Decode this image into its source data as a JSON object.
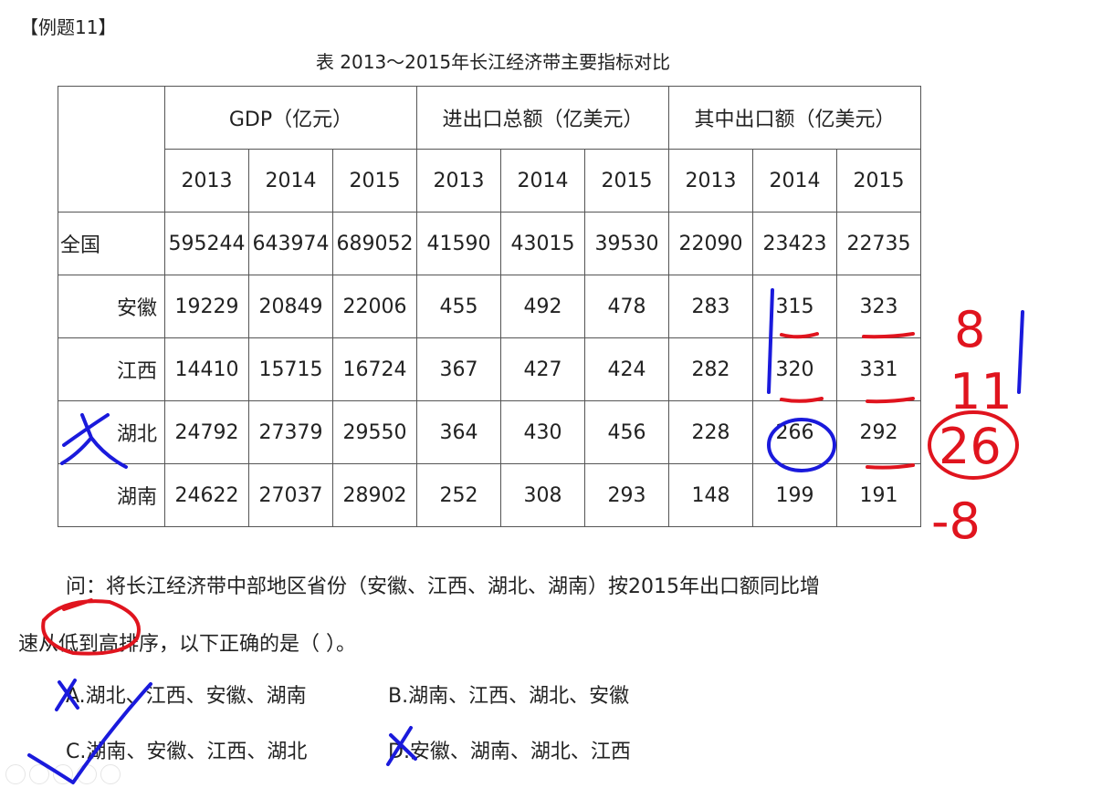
{
  "example_label": "【例题11】",
  "caption": "表  2013～2015年长江经济带主要指标对比",
  "table": {
    "group_headers": [
      "GDP（亿元）",
      "进出口总额（亿美元）",
      "其中出口额（亿美元）"
    ],
    "years": [
      "2013",
      "2014",
      "2015",
      "2013",
      "2014",
      "2015",
      "2013",
      "2014",
      "2015"
    ],
    "rows": [
      {
        "name": "全国",
        "values": [
          "595244",
          "643974",
          "689052",
          "41590",
          "43015",
          "39530",
          "22090",
          "23423",
          "22735"
        ]
      },
      {
        "name": "安徽",
        "values": [
          "19229",
          "20849",
          "22006",
          "455",
          "492",
          "478",
          "283",
          "315",
          "323"
        ]
      },
      {
        "name": "江西",
        "values": [
          "14410",
          "15715",
          "16724",
          "367",
          "427",
          "424",
          "282",
          "320",
          "331"
        ]
      },
      {
        "name": "湖北",
        "values": [
          "24792",
          "27379",
          "29550",
          "364",
          "430",
          "456",
          "228",
          "266",
          "292"
        ]
      },
      {
        "name": "湖南",
        "values": [
          "24622",
          "27037",
          "28902",
          "252",
          "308",
          "293",
          "148",
          "199",
          "191"
        ]
      }
    ]
  },
  "question": {
    "line1": "问：将长江经济带中部地区省份（安徽、江西、湖北、湖南）按2015年出口额同比增",
    "line2": "速从低到高排序，以下正确的是（ ）。",
    "options": [
      "A.湖北、江西、安徽、湖南",
      "B.湖南、江西、湖北、安徽",
      "C.湖南、安徽、江西、湖北",
      "D.安徽、湖南、湖北、江西"
    ]
  },
  "annotations": {
    "diffs": [
      "8",
      "11",
      "26",
      "-8"
    ],
    "ink_red": "#e0141e",
    "ink_blue": "#1a1adc"
  }
}
